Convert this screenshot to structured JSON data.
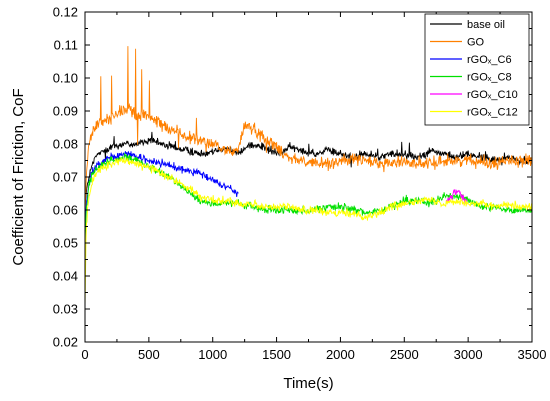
{
  "chart_data": {
    "type": "line",
    "xlabel": "Time(s)",
    "ylabel": "Coefficient of Friction, CoF",
    "xlim": [
      0,
      3500
    ],
    "ylim": [
      0.02,
      0.12
    ],
    "xticks": [
      0,
      500,
      1000,
      1500,
      2000,
      2500,
      3000,
      3500
    ],
    "yticks": [
      0.02,
      0.03,
      0.04,
      0.05,
      0.06,
      0.07,
      0.08,
      0.09,
      0.1,
      0.11,
      0.12
    ],
    "xtick_labels": [
      "0",
      "500",
      "1000",
      "1500",
      "2000",
      "2500",
      "3000",
      "3500"
    ],
    "ytick_labels": [
      "0.02",
      "0.03",
      "0.04",
      "0.05",
      "0.06",
      "0.07",
      "0.08",
      "0.09",
      "0.10",
      "0.11",
      "0.12"
    ],
    "grid": false,
    "legend_position": "top-right",
    "series": [
      {
        "name": "base oil",
        "color": "#000000",
        "noise": 0.0018,
        "x": [
          0,
          10,
          30,
          60,
          100,
          200,
          300,
          400,
          500,
          600,
          700,
          800,
          900,
          1000,
          1100,
          1200,
          1300,
          1400,
          1500,
          1600,
          1700,
          1800,
          1900,
          2000,
          2100,
          2200,
          2300,
          2400,
          2500,
          2600,
          2700,
          2800,
          2900,
          3000,
          3100,
          3200,
          3300,
          3400,
          3500
        ],
        "y": [
          0.062,
          0.065,
          0.07,
          0.074,
          0.077,
          0.079,
          0.08,
          0.08,
          0.081,
          0.08,
          0.079,
          0.078,
          0.077,
          0.078,
          0.079,
          0.077,
          0.08,
          0.079,
          0.077,
          0.079,
          0.078,
          0.077,
          0.078,
          0.077,
          0.076,
          0.077,
          0.076,
          0.077,
          0.077,
          0.076,
          0.078,
          0.077,
          0.076,
          0.077,
          0.076,
          0.075,
          0.076,
          0.075,
          0.075
        ]
      },
      {
        "name": "GO",
        "color": "#ff8000",
        "noise": 0.0028,
        "x": [
          0,
          10,
          30,
          60,
          100,
          150,
          200,
          250,
          300,
          350,
          400,
          450,
          500,
          600,
          700,
          800,
          900,
          1000,
          1100,
          1200,
          1250,
          1300,
          1400,
          1500,
          1600,
          1700,
          1800,
          1900,
          2000,
          2100,
          2200,
          2300,
          2400,
          2500,
          2600,
          2700,
          2800,
          2900,
          3000,
          3100,
          3200,
          3300,
          3400,
          3500
        ],
        "y": [
          0.058,
          0.07,
          0.08,
          0.084,
          0.086,
          0.087,
          0.088,
          0.089,
          0.09,
          0.091,
          0.088,
          0.089,
          0.088,
          0.086,
          0.084,
          0.082,
          0.081,
          0.08,
          0.078,
          0.078,
          0.086,
          0.085,
          0.082,
          0.079,
          0.076,
          0.075,
          0.074,
          0.074,
          0.075,
          0.075,
          0.075,
          0.074,
          0.074,
          0.075,
          0.074,
          0.074,
          0.075,
          0.075,
          0.075,
          0.075,
          0.074,
          0.075,
          0.075,
          0.075
        ]
      },
      {
        "name": "rGOₓ_C6",
        "color": "#0000ff",
        "noise": 0.0018,
        "x": [
          0,
          10,
          30,
          60,
          100,
          200,
          300,
          400,
          500,
          600,
          700,
          800,
          850,
          900,
          950,
          1000,
          1050,
          1100,
          1150,
          1200
        ],
        "y": [
          0.055,
          0.062,
          0.068,
          0.072,
          0.074,
          0.076,
          0.077,
          0.076,
          0.075,
          0.074,
          0.073,
          0.072,
          0.072,
          0.071,
          0.07,
          0.069,
          0.068,
          0.067,
          0.066,
          0.065
        ]
      },
      {
        "name": "rGOₓ_C8",
        "color": "#00e000",
        "noise": 0.0018,
        "x": [
          0,
          10,
          30,
          60,
          100,
          200,
          300,
          400,
          500,
          600,
          700,
          800,
          900,
          1000,
          1100,
          1200,
          1300,
          1400,
          1500,
          1600,
          1700,
          1800,
          1900,
          2000,
          2100,
          2200,
          2300,
          2400,
          2500,
          2600,
          2700,
          2800,
          2900,
          3000,
          3100,
          3200,
          3300,
          3400,
          3500
        ],
        "y": [
          0.05,
          0.06,
          0.067,
          0.071,
          0.073,
          0.075,
          0.076,
          0.075,
          0.073,
          0.071,
          0.069,
          0.066,
          0.063,
          0.062,
          0.062,
          0.062,
          0.061,
          0.06,
          0.06,
          0.06,
          0.06,
          0.06,
          0.061,
          0.061,
          0.06,
          0.059,
          0.06,
          0.061,
          0.063,
          0.063,
          0.062,
          0.064,
          0.064,
          0.063,
          0.061,
          0.061,
          0.06,
          0.06,
          0.06
        ]
      },
      {
        "name": "rGOₓ_C10",
        "color": "#ff00ff",
        "noise": 0.0014,
        "x": [
          2830,
          2850,
          2870,
          2890,
          2910,
          2930,
          2950,
          2970,
          2990
        ],
        "y": [
          0.062,
          0.063,
          0.064,
          0.065,
          0.066,
          0.065,
          0.064,
          0.063,
          0.063
        ]
      },
      {
        "name": "rGOₓ_C12",
        "color": "#ffff00",
        "noise": 0.0018,
        "x": [
          0,
          10,
          30,
          60,
          100,
          200,
          300,
          400,
          500,
          600,
          700,
          800,
          900,
          1000,
          1100,
          1200,
          1300,
          1400,
          1500,
          1600,
          1700,
          1800,
          1900,
          2000,
          2100,
          2200,
          2300,
          2400,
          2500,
          2600,
          2700,
          2800,
          2900,
          3000,
          3100,
          3200,
          3300,
          3400,
          3500
        ],
        "y": [
          0.03,
          0.055,
          0.064,
          0.069,
          0.072,
          0.074,
          0.075,
          0.074,
          0.073,
          0.071,
          0.069,
          0.067,
          0.064,
          0.063,
          0.063,
          0.062,
          0.062,
          0.061,
          0.061,
          0.061,
          0.06,
          0.06,
          0.059,
          0.059,
          0.059,
          0.058,
          0.059,
          0.061,
          0.062,
          0.063,
          0.063,
          0.062,
          0.063,
          0.062,
          0.062,
          0.061,
          0.062,
          0.061,
          0.061
        ]
      }
    ]
  }
}
